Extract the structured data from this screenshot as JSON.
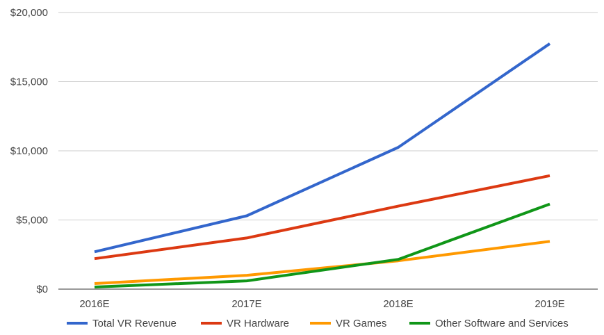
{
  "chart_data": {
    "type": "line",
    "title": "",
    "xlabel": "",
    "ylabel": "",
    "categories": [
      "2016E",
      "2017E",
      "2018E",
      "2019E"
    ],
    "ylim": [
      0,
      20000
    ],
    "y_ticks": [
      0,
      5000,
      10000,
      15000,
      20000
    ],
    "y_tick_labels": [
      "$0",
      "$5,000",
      "$10,000",
      "$15,000",
      "$20,000"
    ],
    "grid": true,
    "legend_position": "bottom",
    "series": [
      {
        "name": "Total VR Revenue",
        "color": "#3366cc",
        "values": [
          2700,
          5300,
          10250,
          17750
        ]
      },
      {
        "name": "VR Hardware",
        "color": "#dc3912",
        "values": [
          2200,
          3700,
          6000,
          8200
        ]
      },
      {
        "name": "VR Games",
        "color": "#ff9900",
        "values": [
          400,
          1000,
          2050,
          3450
        ]
      },
      {
        "name": "Other Software and Services",
        "color": "#109618",
        "values": [
          150,
          600,
          2150,
          6150
        ]
      }
    ]
  }
}
